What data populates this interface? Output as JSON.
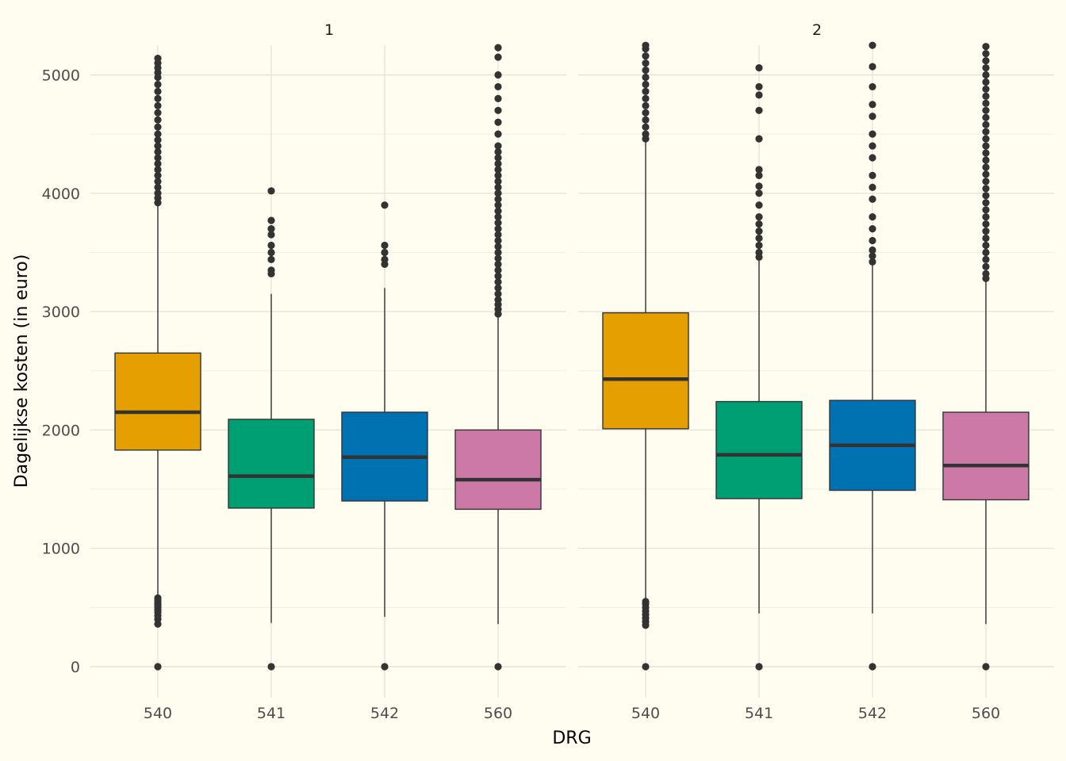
{
  "chart_data": {
    "type": "boxplot",
    "facet_variable_values": [
      "1",
      "2"
    ],
    "xlabel": "DRG",
    "ylabel": "Dagelijkse kosten (in euro)",
    "categories": [
      "540",
      "541",
      "542",
      "560"
    ],
    "yticks": [
      0,
      1000,
      2000,
      3000,
      4000,
      5000
    ],
    "ylim": [
      -250,
      5250
    ],
    "grid": true,
    "legend": "none",
    "colors": {
      "540": "#E69F00",
      "541": "#009E73",
      "542": "#0072B2",
      "560": "#CC79A7"
    },
    "panels": [
      {
        "label": "1",
        "boxes": [
          {
            "category": "540",
            "whisker_low": 590,
            "q1": 1830,
            "median": 2150,
            "q3": 2650,
            "whisker_high": 3900,
            "outliers_low": [
              360,
              400,
              430,
              460,
              480,
              500,
              520,
              540,
              560,
              580
            ],
            "outliers_high": [
              3920,
              3960,
              4000,
              4050,
              4100,
              4150,
              4200,
              4250,
              4300,
              4350,
              4400,
              4450,
              4500,
              4560,
              4620,
              4680,
              4740,
              4800,
              4860,
              4920,
              4980,
              5020,
              5060,
              5100,
              5140
            ],
            "outliers_zero": true
          },
          {
            "category": "541",
            "whisker_low": 370,
            "q1": 1340,
            "median": 1610,
            "q3": 2090,
            "whisker_high": 3150,
            "outliers_low": [],
            "outliers_high": [
              3320,
              3350,
              3440,
              3500,
              3560,
              3650,
              3700,
              3770,
              4020
            ],
            "outliers_zero": true
          },
          {
            "category": "542",
            "whisker_low": 420,
            "q1": 1400,
            "median": 1770,
            "q3": 2150,
            "whisker_high": 3200,
            "outliers_low": [],
            "outliers_high": [
              3400,
              3440,
              3500,
              3560,
              3900
            ],
            "outliers_zero": true
          },
          {
            "category": "560",
            "whisker_low": 360,
            "q1": 1330,
            "median": 1580,
            "q3": 2000,
            "whisker_high": 2960,
            "outliers_low": [],
            "outliers_high": [
              2980,
              3020,
              3060,
              3100,
              3150,
              3200,
              3250,
              3300,
              3350,
              3400,
              3450,
              3500,
              3550,
              3600,
              3650,
              3700,
              3750,
              3800,
              3850,
              3900,
              3950,
              4000,
              4050,
              4100,
              4150,
              4200,
              4250,
              4300,
              4350,
              4400,
              4500,
              4600,
              4700,
              4800,
              4900,
              5000,
              5150,
              5230
            ],
            "outliers_zero": true
          }
        ]
      },
      {
        "label": "2",
        "boxes": [
          {
            "category": "540",
            "whisker_low": 560,
            "q1": 2010,
            "median": 2430,
            "q3": 2990,
            "whisker_high": 4440,
            "outliers_low": [
              350,
              380,
              410,
              440,
              470,
              500,
              530,
              550
            ],
            "outliers_high": [
              4460,
              4500,
              4560,
              4620,
              4680,
              4740,
              4800,
              4860,
              4920,
              4980,
              5040,
              5100,
              5160,
              5220,
              5250
            ],
            "outliers_zero": true
          },
          {
            "category": "541",
            "whisker_low": 450,
            "q1": 1420,
            "median": 1790,
            "q3": 2240,
            "whisker_high": 3440,
            "outliers_low": [],
            "outliers_high": [
              3460,
              3500,
              3560,
              3620,
              3680,
              3740,
              3800,
              3900,
              4000,
              4060,
              4150,
              4200,
              4460,
              4700,
              4830,
              4900,
              5060
            ],
            "outliers_zero": true
          },
          {
            "category": "542",
            "whisker_low": 450,
            "q1": 1490,
            "median": 1870,
            "q3": 2250,
            "whisker_high": 3400,
            "outliers_low": [],
            "outliers_high": [
              3420,
              3470,
              3520,
              3600,
              3700,
              3800,
              3950,
              4050,
              4150,
              4300,
              4400,
              4500,
              4650,
              4750,
              4900,
              5070,
              5250
            ],
            "outliers_zero": true
          },
          {
            "category": "560",
            "whisker_low": 360,
            "q1": 1410,
            "median": 1700,
            "q3": 2150,
            "whisker_high": 3260,
            "outliers_low": [],
            "outliers_high": [
              3280,
              3320,
              3380,
              3440,
              3500,
              3560,
              3620,
              3680,
              3740,
              3800,
              3860,
              3920,
              3980,
              4040,
              4100,
              4160,
              4220,
              4280,
              4340,
              4400,
              4460,
              4520,
              4580,
              4640,
              4700,
              4760,
              4820,
              4880,
              4940,
              5000,
              5060,
              5120,
              5180,
              5240
            ],
            "outliers_zero": true
          }
        ]
      }
    ]
  }
}
